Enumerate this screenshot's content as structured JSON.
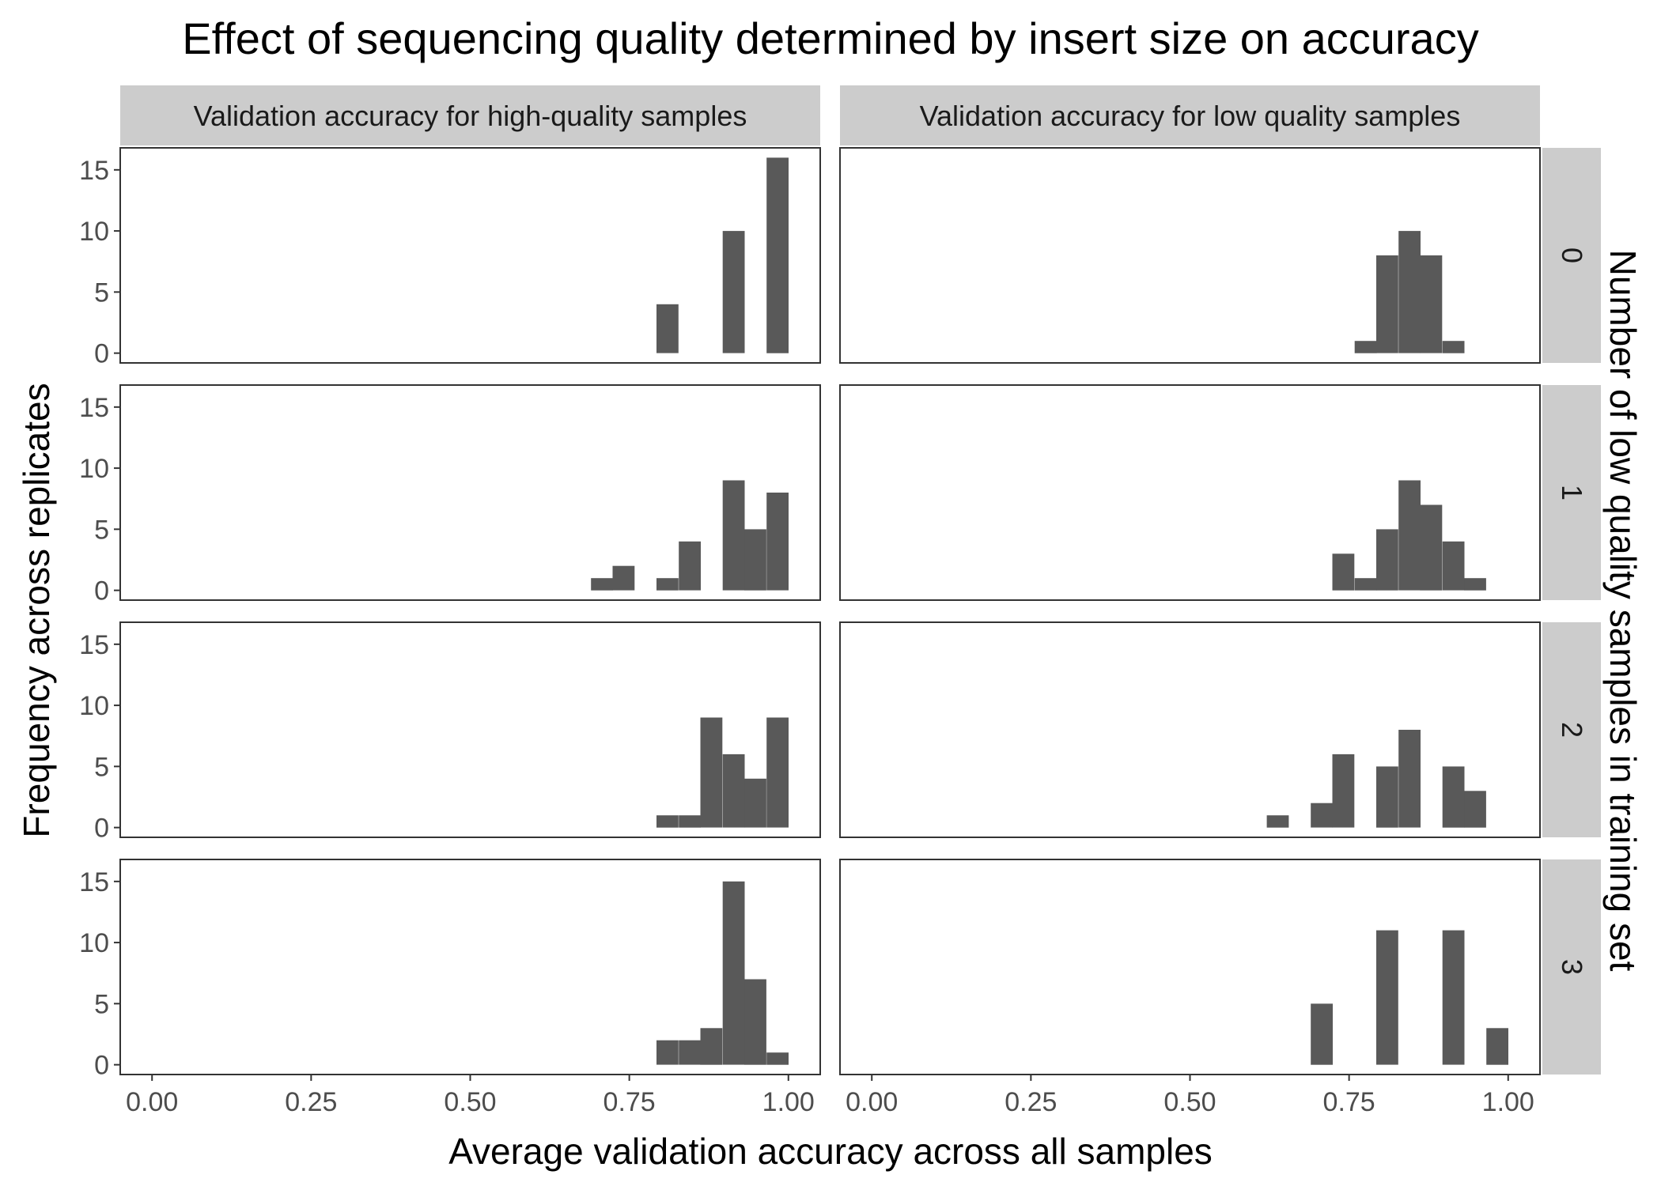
{
  "chart_data": {
    "type": "bar",
    "title": "Effect of sequencing quality determined by insert size on accuracy",
    "xlabel": "Average validation accuracy across all samples",
    "ylabel": "Frequency across replicates",
    "facet_row_label": "Number of low quality samples in training set",
    "facet_cols": [
      "Validation accuracy for high-quality samples",
      "Validation accuracy for low quality samples"
    ],
    "facet_rows": [
      "0",
      "1",
      "2",
      "3"
    ],
    "xlim": [
      -0.05,
      1.05
    ],
    "ylim": [
      -0.8,
      16.8
    ],
    "x_ticks": [
      {
        "value": 0,
        "label": "0.00"
      },
      {
        "value": 0.25,
        "label": "0.25"
      },
      {
        "value": 0.5,
        "label": "0.50"
      },
      {
        "value": 0.75,
        "label": "0.75"
      },
      {
        "value": 1,
        "label": "1.00"
      }
    ],
    "y_ticks": [
      {
        "value": 0,
        "label": "0"
      },
      {
        "value": 5,
        "label": "5"
      },
      {
        "value": 10,
        "label": "10"
      },
      {
        "value": 15,
        "label": "15"
      }
    ],
    "bin_width": 0.0345,
    "grid": false,
    "panels": [
      {
        "row": 0,
        "col": 0,
        "bins": [
          {
            "x": 0.81,
            "count": 4
          },
          {
            "x": 0.914,
            "count": 10
          },
          {
            "x": 0.983,
            "count": 16
          }
        ]
      },
      {
        "row": 0,
        "col": 1,
        "bins": [
          {
            "x": 0.776,
            "count": 1
          },
          {
            "x": 0.81,
            "count": 8
          },
          {
            "x": 0.845,
            "count": 10
          },
          {
            "x": 0.879,
            "count": 8
          },
          {
            "x": 0.914,
            "count": 1
          }
        ]
      },
      {
        "row": 1,
        "col": 0,
        "bins": [
          {
            "x": 0.707,
            "count": 1
          },
          {
            "x": 0.741,
            "count": 2
          },
          {
            "x": 0.81,
            "count": 1
          },
          {
            "x": 0.845,
            "count": 4
          },
          {
            "x": 0.914,
            "count": 9
          },
          {
            "x": 0.948,
            "count": 5
          },
          {
            "x": 0.983,
            "count": 8
          }
        ]
      },
      {
        "row": 1,
        "col": 1,
        "bins": [
          {
            "x": 0.741,
            "count": 3
          },
          {
            "x": 0.776,
            "count": 1
          },
          {
            "x": 0.81,
            "count": 5
          },
          {
            "x": 0.845,
            "count": 9
          },
          {
            "x": 0.879,
            "count": 7
          },
          {
            "x": 0.914,
            "count": 4
          },
          {
            "x": 0.948,
            "count": 1
          }
        ]
      },
      {
        "row": 2,
        "col": 0,
        "bins": [
          {
            "x": 0.81,
            "count": 1
          },
          {
            "x": 0.845,
            "count": 1
          },
          {
            "x": 0.879,
            "count": 9
          },
          {
            "x": 0.914,
            "count": 6
          },
          {
            "x": 0.948,
            "count": 4
          },
          {
            "x": 0.983,
            "count": 9
          }
        ]
      },
      {
        "row": 2,
        "col": 1,
        "bins": [
          {
            "x": 0.638,
            "count": 1
          },
          {
            "x": 0.707,
            "count": 2
          },
          {
            "x": 0.741,
            "count": 6
          },
          {
            "x": 0.81,
            "count": 5
          },
          {
            "x": 0.845,
            "count": 8
          },
          {
            "x": 0.914,
            "count": 5
          },
          {
            "x": 0.948,
            "count": 3
          }
        ]
      },
      {
        "row": 3,
        "col": 0,
        "bins": [
          {
            "x": 0.81,
            "count": 2
          },
          {
            "x": 0.845,
            "count": 2
          },
          {
            "x": 0.879,
            "count": 3
          },
          {
            "x": 0.914,
            "count": 15
          },
          {
            "x": 0.948,
            "count": 7
          },
          {
            "x": 0.983,
            "count": 1
          }
        ]
      },
      {
        "row": 3,
        "col": 1,
        "bins": [
          {
            "x": 0.707,
            "count": 5
          },
          {
            "x": 0.81,
            "count": 11
          },
          {
            "x": 0.914,
            "count": 11
          },
          {
            "x": 0.983,
            "count": 3
          }
        ]
      }
    ],
    "colors": {
      "bar": "#595959",
      "strip": "#cccccc",
      "border": "#333333"
    }
  }
}
